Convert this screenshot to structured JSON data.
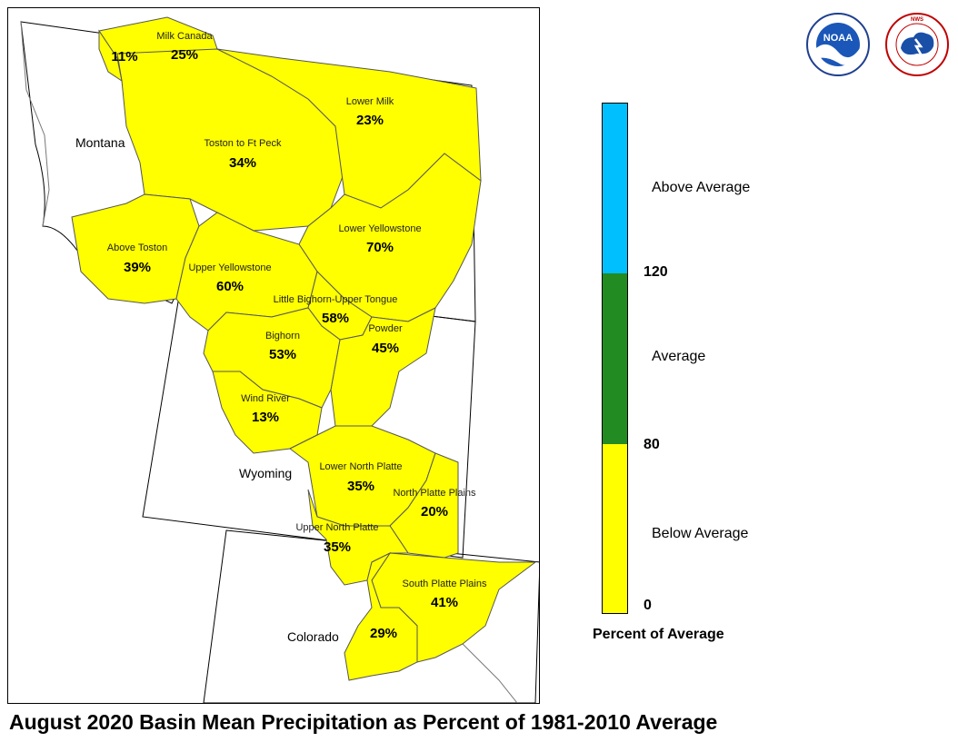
{
  "title": "August 2020 Basin Mean Precipitation as Percent of 1981-2010 Average",
  "logos": [
    {
      "name": "noaa-logo",
      "text": "NOAA"
    },
    {
      "name": "nws-logo",
      "text": "NATIONAL WEATHER SERVICE"
    }
  ],
  "states": [
    "Montana",
    "Wyoming",
    "Colorado"
  ],
  "basins": [
    {
      "name": "Milk Canada",
      "percent": "25%",
      "category": "Below Average"
    },
    {
      "name": "",
      "percent": "11%",
      "category": "Below Average"
    },
    {
      "name": "Lower Milk",
      "percent": "23%",
      "category": "Below Average"
    },
    {
      "name": "Toston to Ft Peck",
      "percent": "34%",
      "category": "Below Average"
    },
    {
      "name": "Above Toston",
      "percent": "39%",
      "category": "Below Average"
    },
    {
      "name": "Lower Yellowstone",
      "percent": "70%",
      "category": "Below Average"
    },
    {
      "name": "Upper Yellowstone",
      "percent": "60%",
      "category": "Below Average"
    },
    {
      "name": "Little Bighorn-Upper Tongue",
      "percent": "58%",
      "category": "Below Average"
    },
    {
      "name": "Bighorn",
      "percent": "53%",
      "category": "Below Average"
    },
    {
      "name": "Powder",
      "percent": "45%",
      "category": "Below Average"
    },
    {
      "name": "Wind River",
      "percent": "13%",
      "category": "Below Average"
    },
    {
      "name": "Lower North Platte",
      "percent": "35%",
      "category": "Below Average"
    },
    {
      "name": "North Platte Plains",
      "percent": "20%",
      "category": "Below Average"
    },
    {
      "name": "Upper North Platte",
      "percent": "35%",
      "category": "Below Average"
    },
    {
      "name": "South Platte Plains",
      "percent": "41%",
      "category": "Below Average"
    },
    {
      "name": "",
      "percent": "29%",
      "category": "Below Average"
    }
  ],
  "legend": {
    "title": "Percent of Average",
    "ticks": [
      "0",
      "80",
      "120"
    ],
    "categories": [
      {
        "label": "Above Average",
        "color": "#00bfff"
      },
      {
        "label": "Average",
        "color": "#228b22"
      },
      {
        "label": "Below Average",
        "color": "#ffff00"
      }
    ]
  }
}
